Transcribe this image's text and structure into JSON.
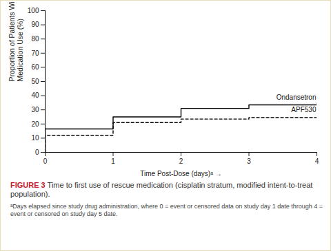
{
  "chart_data": {
    "type": "line",
    "x_label": "Time Post-Dose (days)ᵃ",
    "y_label": "Proportion of Patients With Rescue Medication Use (%)",
    "caption_label": "FIGURE 3",
    "caption": "Time to first use of rescue medication (cisplatin stratum, modified intent-to-treat population).",
    "footnote": "ᵃDays elapsed since study drug administration, where 0 = event or censored data on study day 1 date through 4 = event or censored on study day 5 date.",
    "x": [
      0,
      0,
      1,
      2,
      3,
      4
    ],
    "series": [
      {
        "name": "Ondansetron",
        "color": "#000000",
        "line_style": "solid",
        "values": [
          0,
          16.5,
          25,
          31,
          33.5,
          35
        ]
      },
      {
        "name": "APF530",
        "color": "#000000",
        "line_style": "dashed",
        "values": [
          0,
          12,
          21,
          23.5,
          24.5,
          26
        ]
      }
    ],
    "xlim": [
      0,
      4
    ],
    "ylim": [
      0,
      100
    ],
    "xticks": [
      0,
      1,
      2,
      3,
      4
    ],
    "yticks": [
      0,
      10,
      20,
      30,
      40,
      50,
      60,
      70,
      80,
      90,
      100
    ],
    "grid": false
  }
}
